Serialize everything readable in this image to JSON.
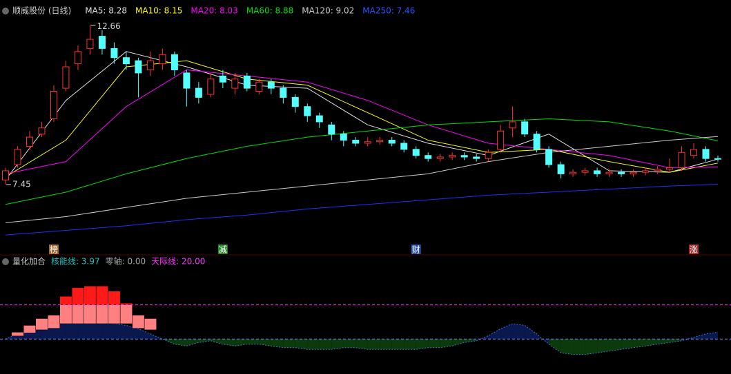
{
  "chart_data": {
    "type": "candlestick",
    "title": "顺威股份 (日线)",
    "legend": [
      {
        "label": "MA5: 8.28",
        "color": "#e0e0e0"
      },
      {
        "label": "MA10: 8.15",
        "color": "#ffff00"
      },
      {
        "label": "MA20: 8.03",
        "color": "#ff00ff"
      },
      {
        "label": "MA60: 8.88",
        "color": "#00e000"
      },
      {
        "label": "MA120: 9.02",
        "color": "#cccccc"
      },
      {
        "label": "MA250: 7.46",
        "color": "#3050ff"
      }
    ],
    "up_color": "#ff3232",
    "down_color": "#54ffff",
    "ylim": [
      5.6,
      12.99
    ],
    "xlim": [
      0,
      59
    ],
    "open": [
      7.6,
      8.1,
      8.7,
      9.1,
      9.6,
      10.6,
      11.4,
      11.9,
      12.3,
      11.9,
      11.6,
      11.5,
      11.2,
      11.4,
      11.7,
      11.1,
      10.6,
      10.4,
      11.0,
      10.6,
      11.0,
      10.5,
      10.8,
      10.6,
      10.3,
      10.0,
      9.7,
      9.4,
      9.1,
      8.9,
      8.8,
      8.85,
      8.9,
      8.8,
      8.6,
      8.4,
      8.3,
      8.35,
      8.4,
      8.35,
      8.3,
      8.6,
      9.3,
      9.5,
      9.1,
      8.6,
      8.1,
      7.8,
      7.85,
      7.9,
      7.8,
      7.85,
      7.8,
      7.85,
      7.9,
      7.95,
      8.0,
      8.4,
      8.6,
      8.3
    ],
    "high": [
      8.0,
      8.7,
      9.2,
      9.5,
      10.7,
      11.5,
      12.0,
      12.66,
      12.5,
      12.1,
      11.8,
      11.6,
      11.8,
      11.9,
      11.8,
      11.2,
      10.8,
      11.1,
      11.2,
      11.1,
      11.1,
      10.9,
      10.9,
      10.7,
      10.4,
      10.1,
      9.8,
      9.5,
      9.2,
      9.0,
      9.0,
      9.0,
      9.0,
      8.9,
      8.7,
      8.5,
      8.45,
      8.5,
      8.5,
      8.45,
      8.6,
      9.4,
      10.0,
      9.6,
      9.2,
      8.7,
      8.2,
      7.95,
      8.0,
      8.0,
      7.95,
      7.95,
      7.95,
      8.0,
      8.05,
      8.3,
      8.7,
      8.8,
      8.7,
      8.4
    ],
    "low": [
      7.45,
      8.0,
      8.6,
      9.0,
      9.5,
      10.5,
      11.2,
      11.7,
      11.7,
      11.4,
      11.2,
      10.3,
      11.0,
      11.2,
      11.0,
      10.0,
      10.1,
      10.3,
      10.6,
      10.4,
      10.5,
      10.4,
      10.4,
      10.1,
      9.8,
      9.5,
      9.3,
      8.9,
      8.7,
      8.7,
      8.7,
      8.75,
      8.7,
      8.5,
      8.3,
      8.2,
      8.2,
      8.25,
      8.25,
      8.2,
      8.2,
      8.5,
      9.0,
      9.0,
      8.5,
      8.0,
      7.65,
      7.7,
      7.75,
      7.7,
      7.7,
      7.7,
      7.7,
      7.75,
      7.8,
      7.85,
      7.9,
      8.3,
      8.2,
      8.2
    ],
    "close": [
      7.9,
      8.6,
      9.0,
      9.3,
      10.5,
      11.3,
      11.8,
      12.2,
      11.9,
      11.6,
      11.4,
      11.1,
      11.5,
      11.7,
      11.2,
      10.6,
      10.3,
      10.9,
      10.8,
      10.9,
      10.6,
      10.8,
      10.6,
      10.3,
      10.0,
      9.7,
      9.5,
      9.1,
      8.9,
      8.8,
      8.85,
      8.9,
      8.8,
      8.6,
      8.4,
      8.3,
      8.35,
      8.4,
      8.35,
      8.3,
      8.5,
      9.2,
      9.5,
      9.1,
      8.6,
      8.1,
      7.8,
      7.85,
      7.9,
      7.8,
      7.85,
      7.8,
      7.85,
      7.9,
      7.95,
      8.0,
      8.5,
      8.6,
      8.3,
      8.28
    ],
    "lines_x": [
      0,
      5,
      10,
      15,
      20,
      25,
      30,
      35,
      40,
      45,
      50,
      55,
      59
    ],
    "lines": [
      {
        "color": "#e0e0e0",
        "values": [
          7.6,
          10.2,
          11.8,
          11.3,
          10.7,
          10.6,
          9.4,
          8.8,
          8.4,
          9.1,
          7.9,
          7.85,
          8.28
        ]
      },
      {
        "color": "#ffff00",
        "values": [
          7.7,
          8.9,
          11.3,
          11.5,
          10.9,
          10.7,
          9.8,
          8.9,
          8.5,
          8.6,
          8.2,
          7.85,
          8.15
        ]
      },
      {
        "color": "#ff00ff",
        "values": [
          7.8,
          8.2,
          10.0,
          11.2,
          11.0,
          10.8,
          10.2,
          9.4,
          8.8,
          8.6,
          8.4,
          8.0,
          8.03
        ]
      },
      {
        "color": "#00e000",
        "values": [
          6.8,
          7.2,
          7.8,
          8.3,
          8.7,
          9.0,
          9.2,
          9.4,
          9.5,
          9.6,
          9.5,
          9.2,
          8.88
        ]
      },
      {
        "color": "#cccccc",
        "values": [
          6.2,
          6.4,
          6.7,
          7.0,
          7.2,
          7.4,
          7.6,
          7.8,
          8.2,
          8.5,
          8.7,
          8.9,
          9.02
        ]
      },
      {
        "color": "#2030ff",
        "values": [
          5.8,
          5.95,
          6.1,
          6.3,
          6.45,
          6.65,
          6.8,
          6.95,
          7.1,
          7.2,
          7.3,
          7.4,
          7.46
        ]
      }
    ],
    "annotations": [
      {
        "text": "12.66",
        "x": 7,
        "y": 12.66
      },
      {
        "text": "7.45",
        "x": 0,
        "y": 7.45
      }
    ],
    "events": [
      {
        "label": "榜",
        "x": 4,
        "color": "#c07830"
      },
      {
        "label": "减",
        "x": 18,
        "color": "#30a030"
      },
      {
        "label": "财",
        "x": 34,
        "color": "#3060c0"
      },
      {
        "label": "涨",
        "x": 57,
        "color": "#c03030"
      }
    ],
    "indicator": {
      "title": "量化加合",
      "legend": [
        {
          "label": "核能线: 3.97",
          "color": "#20c0c0"
        },
        {
          "label": "零轴: 0.00",
          "color": "#a0a0a0"
        },
        {
          "label": "天际线: 20.00",
          "color": "#ff30ff"
        }
      ],
      "ylim": [
        -19.2,
        42.8
      ],
      "reference_lines": [
        {
          "value": 0,
          "color": "#8080ff"
        },
        {
          "value": 20,
          "color": "#ff30ff"
        }
      ],
      "bar_colors": [
        "#ff8080",
        "#ff1a1a"
      ],
      "bars": [
        0,
        4,
        8,
        12,
        14,
        25,
        30,
        31,
        31,
        28,
        21,
        14,
        12,
        null,
        null,
        null,
        null,
        null,
        null,
        null,
        null,
        null,
        null,
        null,
        null,
        null,
        null,
        null,
        null,
        null,
        null,
        null,
        null,
        null,
        null,
        null,
        null,
        null,
        null,
        null,
        null,
        null,
        null,
        null,
        null,
        null,
        null,
        null,
        null,
        null,
        null,
        null,
        null,
        null,
        null,
        null,
        null,
        null,
        null,
        null
      ],
      "curve": [
        0,
        3,
        6,
        8,
        9,
        10,
        10,
        10,
        10,
        9,
        8,
        6,
        3,
        0,
        -3,
        -4,
        -2,
        -1,
        -3,
        -4,
        -3,
        -3,
        -4,
        -5,
        -5,
        -6,
        -6,
        -6,
        -5,
        -5,
        -6,
        -6,
        -6,
        -6,
        -6,
        -5,
        -5,
        -4,
        -2,
        -1,
        2,
        6,
        9,
        8,
        3,
        -3,
        -8,
        -9,
        -9,
        -8,
        -7,
        -6,
        -5,
        -4,
        -3,
        -2,
        -1,
        1,
        3,
        3.97
      ],
      "curve_colors": [
        "#0a1850",
        "#0c3a0c"
      ]
    }
  }
}
